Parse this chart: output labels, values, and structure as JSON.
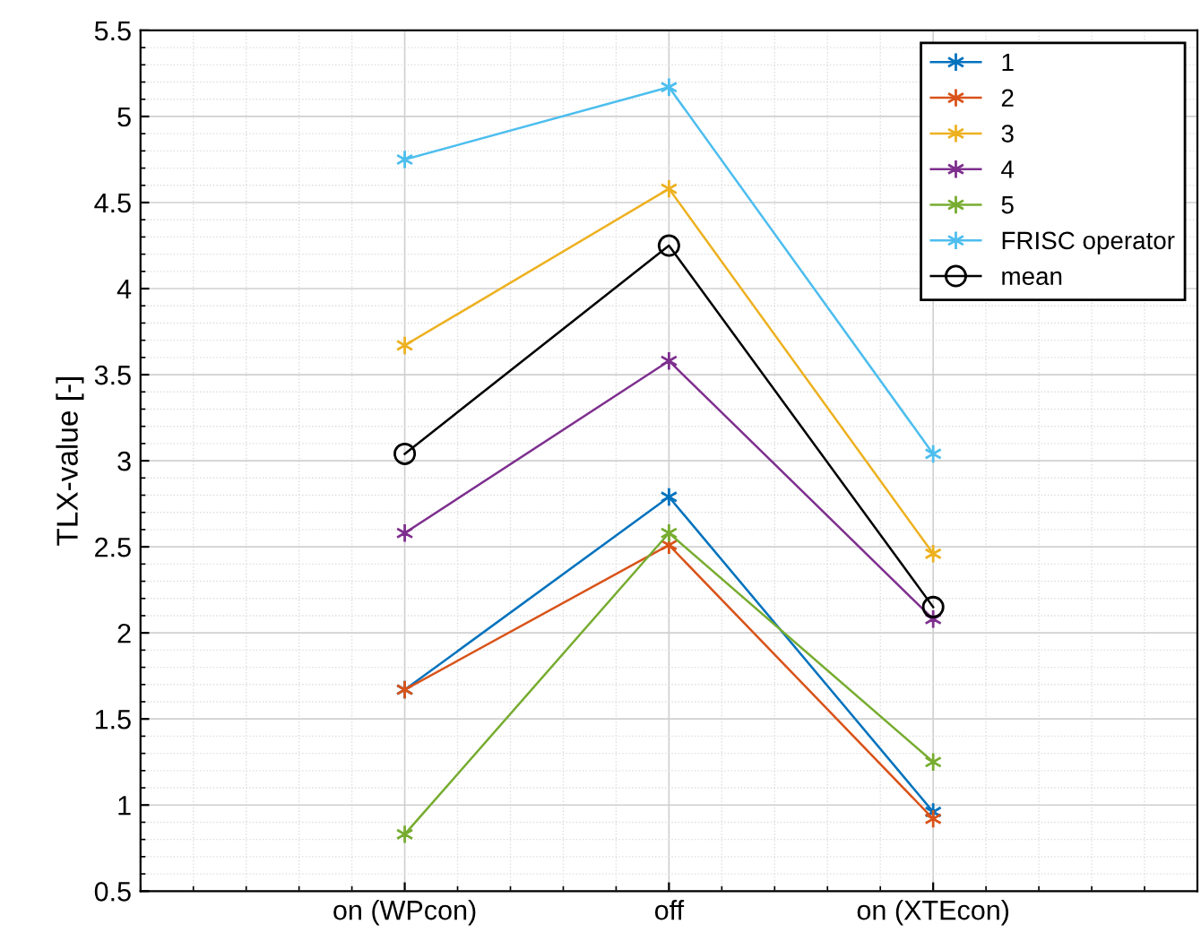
{
  "chart_data": {
    "type": "line",
    "ylabel": "TLX-value [-]",
    "categories": [
      "on (WPcon)",
      "off",
      "on (XTEcon)"
    ],
    "ylim": [
      0.5,
      5.5
    ],
    "yticks": [
      0.5,
      1,
      1.5,
      2,
      2.5,
      3,
      3.5,
      4,
      4.5,
      5,
      5.5
    ],
    "grid": true,
    "legend": "top right",
    "marker": "cross",
    "series": [
      {
        "name": "1",
        "color": "#0072bd",
        "values": [
          1.67,
          2.79,
          0.96
        ]
      },
      {
        "name": "2",
        "color": "#d95319",
        "values": [
          1.67,
          2.51,
          0.92
        ]
      },
      {
        "name": "3",
        "color": "#edb120",
        "values": [
          3.67,
          4.58,
          2.46
        ]
      },
      {
        "name": "4",
        "color": "#7e2f8e",
        "values": [
          2.58,
          3.58,
          2.08
        ]
      },
      {
        "name": "5",
        "color": "#77ac30",
        "values": [
          0.83,
          2.58,
          1.25
        ]
      },
      {
        "name": "FRISC operator",
        "color": "#4dbeee",
        "values": [
          4.75,
          5.17,
          3.04
        ]
      },
      {
        "name": "mean",
        "color": "#000000",
        "marker": "circle",
        "values": [
          3.04,
          4.25,
          2.15
        ]
      }
    ]
  }
}
